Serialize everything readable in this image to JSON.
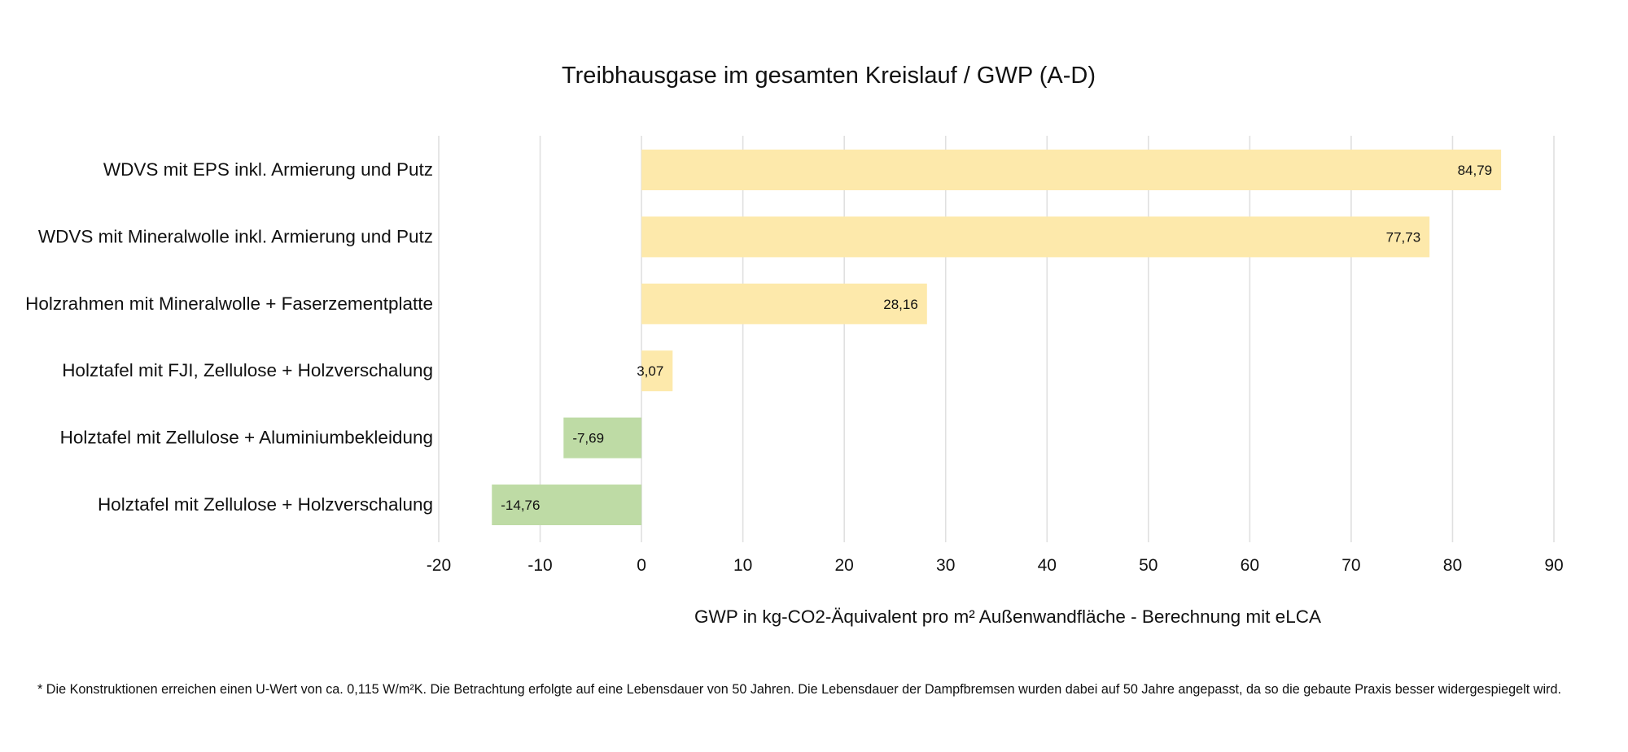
{
  "chart_data": {
    "type": "bar",
    "orientation": "horizontal",
    "title": "Treibhausgase im gesamten Kreislauf / GWP (A-D)",
    "categories": [
      "WDVS mit EPS inkl. Armierung und Putz",
      "WDVS mit Mineralwolle inkl. Armierung und Putz",
      "Holzrahmen mit Mineralwolle + Faserzementplatte",
      "Holztafel mit FJI, Zellulose + Holzverschalung",
      "Holztafel mit Zellulose + Aluminiumbekleidung",
      "Holztafel mit Zellulose + Holzverschalung"
    ],
    "values": [
      84.79,
      77.73,
      28.16,
      3.07,
      -7.69,
      -14.76
    ],
    "data_labels": [
      "84,79",
      "77,73",
      "28,16",
      "3,07",
      "-7,69",
      "-14,76"
    ],
    "xlabel": "GWP in kg-CO2-Äquivalent pro m² Außenwandfläche - Berechnung mit eLCA",
    "ylabel": "",
    "xlim": [
      -20,
      90
    ],
    "xticks": [
      -20,
      -10,
      0,
      10,
      20,
      30,
      40,
      50,
      60,
      70,
      80,
      90
    ],
    "xtick_labels": [
      "-20",
      "-10",
      "0",
      "10",
      "20",
      "30",
      "40",
      "50",
      "60",
      "70",
      "80",
      "90"
    ],
    "grid": true,
    "legend": "none",
    "colors": {
      "positive": "#fde9ab",
      "negative": "#bedba5",
      "grid": "#e0e0e0",
      "text": "#111111"
    }
  },
  "footnote": "* Die Konstruktionen erreichen einen U-Wert von ca. 0,115 W/m²K. Die Betrachtung erfolgte auf eine Lebensdauer von 50 Jahren. Die Lebensdauer der Dampfbremsen wurden dabei auf 50 Jahre angepasst, da so die gebaute Praxis besser widergespiegelt wird."
}
